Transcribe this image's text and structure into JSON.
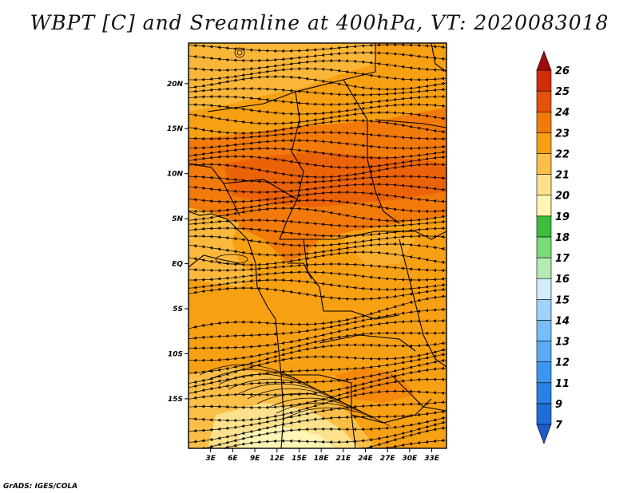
{
  "title": "WBPT [C] and Sreamline at 400hPa, VT: 2020083018",
  "credit": "GrADS: IGES/COLA",
  "map": {
    "lat_range": [
      -20.5,
      24.5
    ],
    "lon_range": [
      0,
      35
    ],
    "lat_labels": [
      {
        "lat": 20,
        "text": "20N"
      },
      {
        "lat": 15,
        "text": "15N"
      },
      {
        "lat": 10,
        "text": "10N"
      },
      {
        "lat": 5,
        "text": "5N"
      },
      {
        "lat": 0,
        "text": "EQ"
      },
      {
        "lat": -5,
        "text": "5S"
      },
      {
        "lat": -10,
        "text": "10S"
      },
      {
        "lat": -15,
        "text": "15S"
      }
    ],
    "lon_labels": [
      {
        "lon": 3,
        "text": "3E"
      },
      {
        "lon": 6,
        "text": "6E"
      },
      {
        "lon": 9,
        "text": "9E"
      },
      {
        "lon": 12,
        "text": "12E"
      },
      {
        "lon": 15,
        "text": "15E"
      },
      {
        "lon": 18,
        "text": "18E"
      },
      {
        "lon": 21,
        "text": "21E"
      },
      {
        "lon": 24,
        "text": "24E"
      },
      {
        "lon": 27,
        "text": "27E"
      },
      {
        "lon": 30,
        "text": "30E"
      },
      {
        "lon": 33,
        "text": "33E"
      }
    ]
  },
  "colorbar": {
    "levels": [
      {
        "label": "7",
        "color": "#1e6ed7"
      },
      {
        "label": "9",
        "color": "#2a82e6"
      },
      {
        "label": "11",
        "color": "#3c96f0"
      },
      {
        "label": "12",
        "color": "#5aaaf5"
      },
      {
        "label": "13",
        "color": "#78bcf8"
      },
      {
        "label": "14",
        "color": "#a0d2fa"
      },
      {
        "label": "15",
        "color": "#d2ecfc"
      },
      {
        "label": "16",
        "color": "#b4eab4"
      },
      {
        "label": "17",
        "color": "#78dc78"
      },
      {
        "label": "18",
        "color": "#3cbe3c"
      },
      {
        "label": "19",
        "color": "#fff5b4"
      },
      {
        "label": "20",
        "color": "#fde18c"
      },
      {
        "label": "21",
        "color": "#fbbe46"
      },
      {
        "label": "22",
        "color": "#f8a014"
      },
      {
        "label": "23",
        "color": "#f27a0a"
      },
      {
        "label": "24",
        "color": "#e5500a"
      },
      {
        "label": "25",
        "color": "#d22d0a"
      },
      {
        "label": "26",
        "color": "#b4140a"
      }
    ],
    "bottom_arrow_color": "#1e5ac8",
    "top_arrow_color": "#a00a0a"
  }
}
